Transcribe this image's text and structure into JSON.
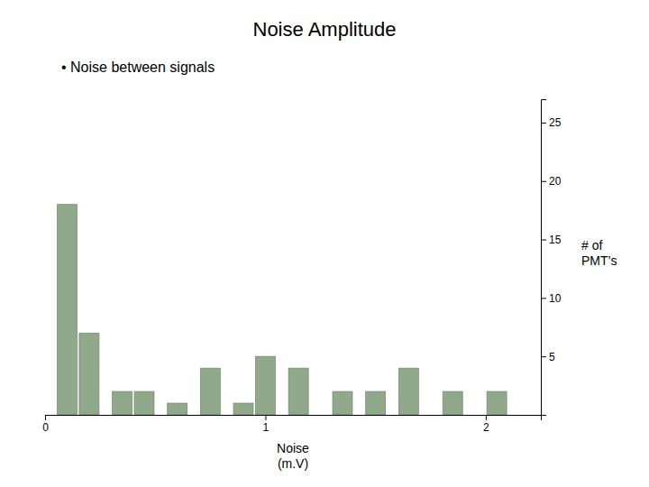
{
  "chart_data": {
    "type": "bar",
    "title": "Noise Amplitude",
    "subtitle": "• Noise between signals",
    "xlabel": "Noise\n(m.V)",
    "ylabel": "# of\nPMT’s",
    "x": [
      0.1,
      0.2,
      0.35,
      0.45,
      0.6,
      0.75,
      0.9,
      1.0,
      1.15,
      1.35,
      1.5,
      1.65,
      1.85,
      2.05
    ],
    "values": [
      18,
      7,
      2,
      2,
      1,
      4,
      1,
      5,
      4,
      2,
      2,
      4,
      2,
      2
    ],
    "color": "#8fa98a",
    "xlim": [
      0,
      2.25
    ],
    "xticks": [
      0,
      1,
      2
    ],
    "ylim": [
      0,
      27
    ],
    "yticks": [
      5,
      10,
      15,
      20,
      25
    ],
    "grid": false
  }
}
